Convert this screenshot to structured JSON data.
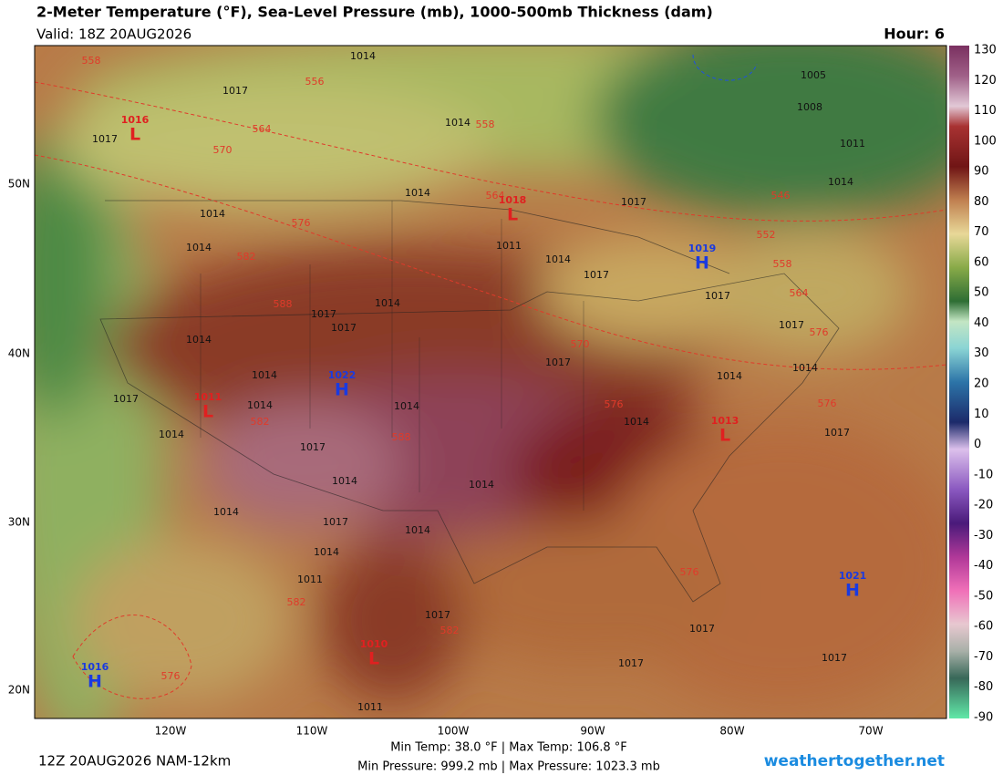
{
  "header": {
    "title": "2-Meter Temperature (°F), Sea-Level Pressure (mb), 1000-500mb Thickness (dam)",
    "valid": "Valid: 18Z 20AUG2026",
    "hour": "Hour: 6"
  },
  "colorbar": {
    "ticks": [
      130,
      120,
      110,
      100,
      90,
      80,
      70,
      60,
      50,
      40,
      30,
      20,
      10,
      0,
      -10,
      -20,
      -30,
      -40,
      -50,
      -60,
      -70,
      -80,
      -90
    ]
  },
  "axes": {
    "lat_labels": [
      "50N",
      "40N",
      "30N",
      "20N"
    ],
    "lon_labels": [
      "120W",
      "110W",
      "100W",
      "90W",
      "80W",
      "70W"
    ]
  },
  "pressure_labels": [
    "1014",
    "1017",
    "1017",
    "1014",
    "1005",
    "1008",
    "1011",
    "1014",
    "1014",
    "1017",
    "1014",
    "1014",
    "1011",
    "1014",
    "1017",
    "1017",
    "1014",
    "1017",
    "1017",
    "1017",
    "1014",
    "1017",
    "1014",
    "1014",
    "1014",
    "1017",
    "1014",
    "1014",
    "1014",
    "1017",
    "1014",
    "1017",
    "1014",
    "1014",
    "1014",
    "1017",
    "1014",
    "1014",
    "1011",
    "1017",
    "1017",
    "1017",
    "1017",
    "1011"
  ],
  "thickness_labels": [
    "558",
    "556",
    "558",
    "564",
    "570",
    "564",
    "546",
    "576",
    "552",
    "582",
    "558",
    "564",
    "588",
    "570",
    "576",
    "576",
    "576",
    "582",
    "588",
    "576",
    "582",
    "582",
    "576"
  ],
  "centers": [
    {
      "letter": "L",
      "value": "1016"
    },
    {
      "letter": "L",
      "value": "1018"
    },
    {
      "letter": "H",
      "value": "1019"
    },
    {
      "letter": "H",
      "value": "1022"
    },
    {
      "letter": "L",
      "value": "1011"
    },
    {
      "letter": "L",
      "value": "1013"
    },
    {
      "letter": "H",
      "value": "1021"
    },
    {
      "letter": "H",
      "value": "1016"
    },
    {
      "letter": "L",
      "value": "1010"
    }
  ],
  "footer": {
    "run": "12Z 20AUG2026 NAM-12km",
    "stats_line1": "Min Temp:  38.0 °F | Max Temp: 106.8 °F",
    "stats_line2": "Min Pressure: 999.2 mb | Max Pressure: 1023.3 mb",
    "brand": "weathertogether.net"
  }
}
